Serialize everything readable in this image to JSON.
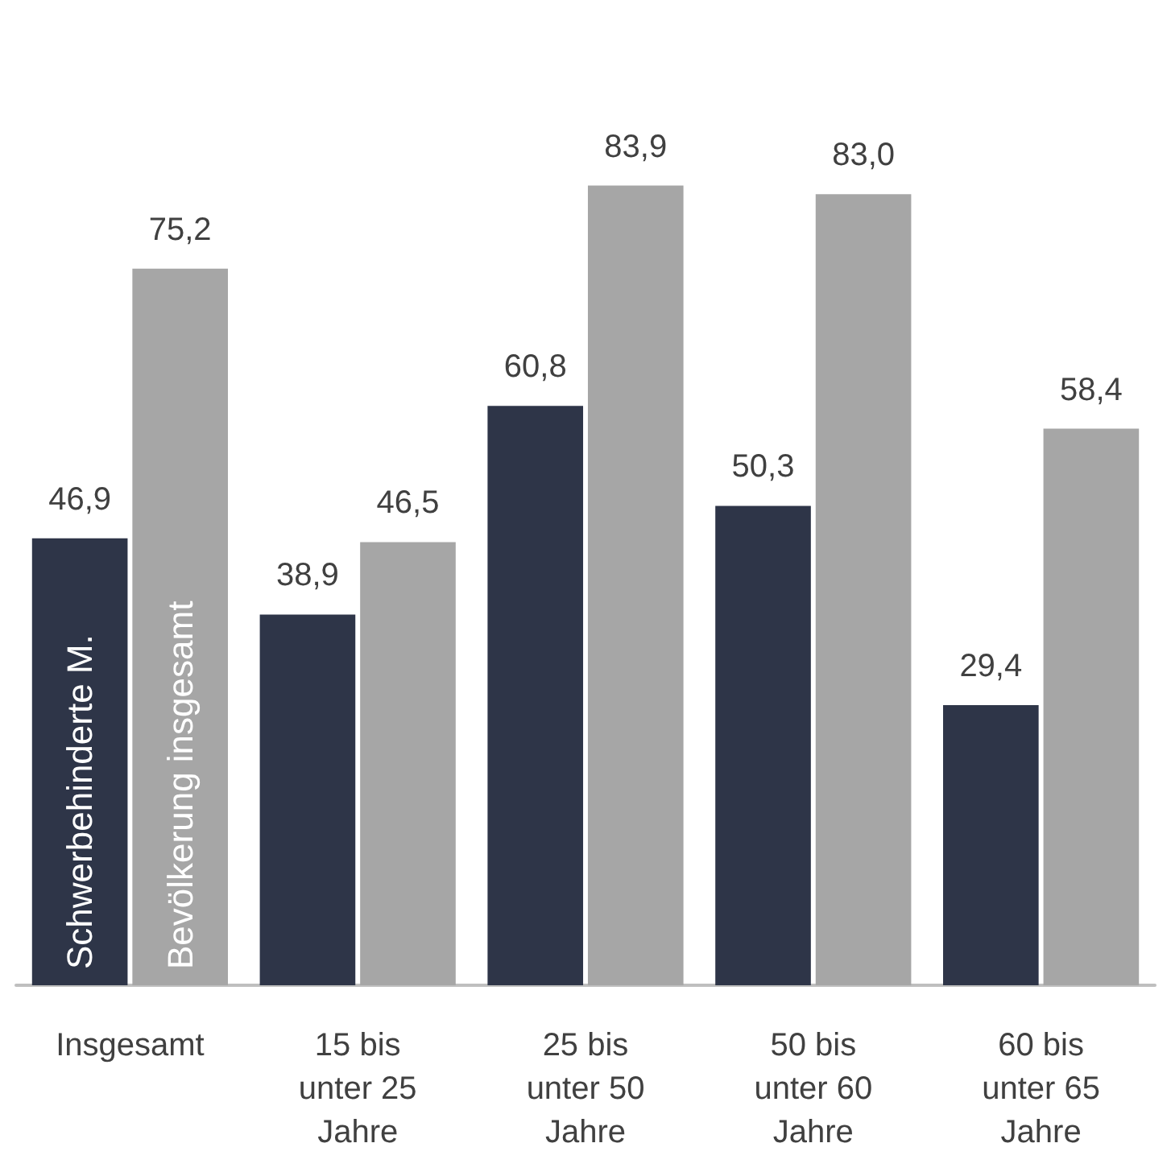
{
  "chart_data": {
    "type": "bar",
    "categories": [
      "Insgesamt",
      "15 bis\nunter 25\nJahre",
      "25 bis\nunter 50\nJahre",
      "50 bis\nunter 60\nJahre",
      "60 bis\nunter 65\nJahre"
    ],
    "series": [
      {
        "name": "Schwerbehinderte M.",
        "color": "#2e3548",
        "values": [
          46.9,
          38.9,
          60.8,
          50.3,
          29.4
        ],
        "value_labels": [
          "46,9",
          "38,9",
          "60,8",
          "50,3",
          "29,4"
        ]
      },
      {
        "name": "Bevölkerung insgesamt",
        "color": "#a6a6a6",
        "values": [
          75.2,
          46.5,
          83.9,
          83.0,
          58.4
        ],
        "value_labels": [
          "75,2",
          "46,5",
          "83,9",
          "83,0",
          "58,4"
        ]
      }
    ],
    "legend": false,
    "grid": false
  }
}
